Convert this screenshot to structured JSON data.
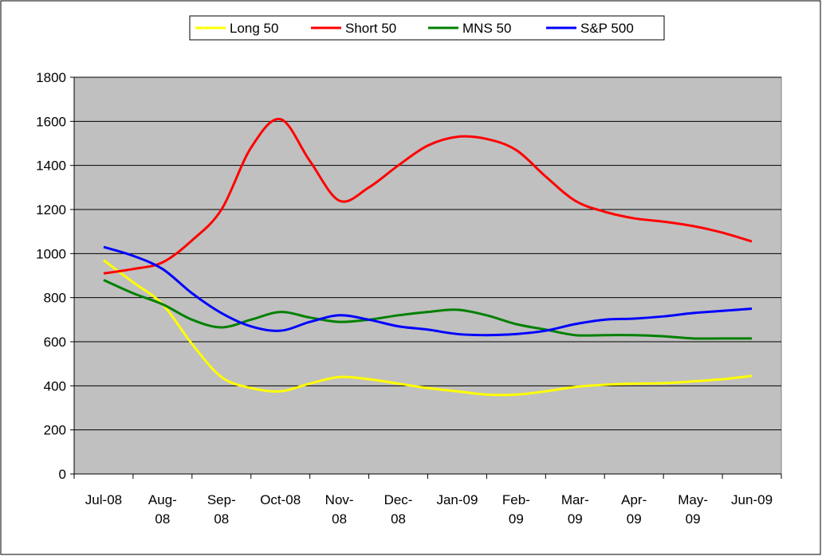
{
  "chart_data": {
    "type": "line",
    "categories": [
      "Jul-08",
      null,
      "Aug-\n08",
      null,
      "Sep-\n08",
      null,
      "Oct-08",
      null,
      "Nov-\n08",
      null,
      "Dec-\n08",
      null,
      "Jan-09",
      null,
      "Feb-\n09",
      null,
      "Mar-\n09",
      null,
      "Apr-\n09",
      null,
      "May-\n09",
      null,
      "Jun-09"
    ],
    "series": [
      {
        "name": "Long 50",
        "color": "#ffff00",
        "values": [
          970,
          870,
          770,
          590,
          440,
          390,
          375,
          410,
          440,
          430,
          410,
          390,
          375,
          360,
          360,
          375,
          395,
          405,
          410,
          412,
          420,
          430,
          445
        ]
      },
      {
        "name": "Short 50",
        "color": "#ff0000",
        "values": [
          910,
          930,
          960,
          1060,
          1200,
          1480,
          1610,
          1420,
          1240,
          1300,
          1400,
          1490,
          1530,
          1520,
          1470,
          1350,
          1240,
          1190,
          1160,
          1145,
          1125,
          1095,
          1055
        ]
      },
      {
        "name": "MNS 50",
        "color": "#008000",
        "values": [
          880,
          820,
          770,
          700,
          665,
          700,
          735,
          710,
          690,
          700,
          720,
          735,
          745,
          720,
          680,
          655,
          630,
          630,
          630,
          625,
          615,
          615,
          615
        ]
      },
      {
        "name": "S&P 500",
        "color": "#0000ff",
        "values": [
          1030,
          990,
          930,
          820,
          730,
          670,
          650,
          690,
          720,
          700,
          670,
          655,
          635,
          630,
          635,
          650,
          680,
          700,
          705,
          715,
          730,
          740,
          750
        ]
      }
    ],
    "ylim": [
      0,
      1800
    ],
    "yticks": [
      0,
      200,
      400,
      600,
      800,
      1000,
      1200,
      1400,
      1600,
      1800
    ],
    "grid": true,
    "plot_background": "#c0c0c0",
    "legend": "top"
  }
}
